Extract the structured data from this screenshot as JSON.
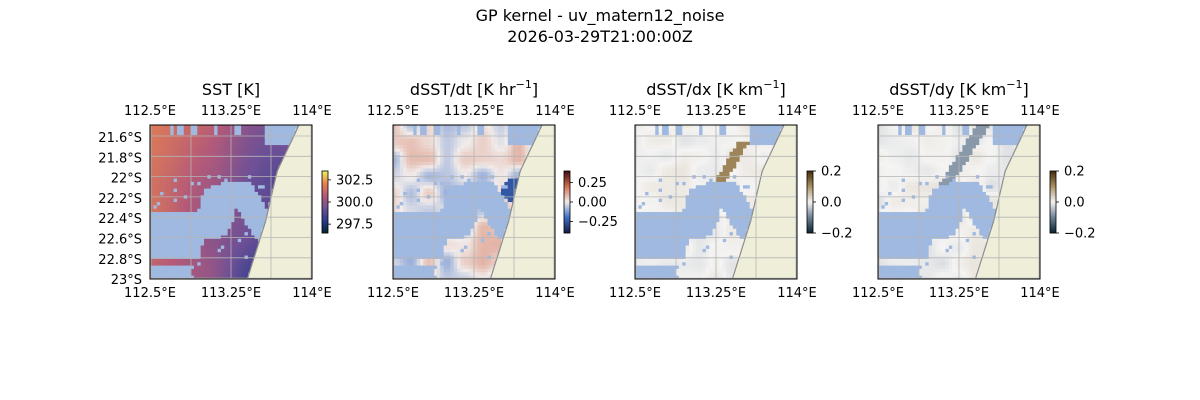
{
  "figure": {
    "title_line1": "GP kernel - uv_matern12_noise",
    "title_line2": "2026-03-29T21:00:00Z"
  },
  "colors": {
    "ocean_mask": "#a0b9e0",
    "land": "#efefd9",
    "coast": "#8c8c8c",
    "grid": "#b4b4b4"
  },
  "chart_data": [
    {
      "type": "heatmap",
      "title": "SST [K]",
      "colormap": "thermal",
      "x_ticks": [
        "112.5°E",
        "113.25°E",
        "114°E"
      ],
      "y_ticks": [
        "21.6°S",
        "21.8°S",
        "22°S",
        "22.2°S",
        "22.4°S",
        "22.6°S",
        "22.8°S",
        "23°S"
      ],
      "colorbar_ticks": [
        "302.5",
        "300.0",
        "297.5"
      ],
      "colorbar_range": [
        296.5,
        303.5
      ]
    },
    {
      "type": "heatmap",
      "title_main": "dSST/dt [K hr",
      "title_sup": "−1",
      "title_end": "]",
      "colormap": "balance",
      "x_ticks": [
        "112.5°E",
        "113.25°E",
        "114°E"
      ],
      "colorbar_ticks": [
        "0.25",
        "0.00",
        "−0.25"
      ],
      "colorbar_range": [
        -0.4,
        0.4
      ]
    },
    {
      "type": "heatmap",
      "title_main": "dSST/dx [K km",
      "title_sup": "−1",
      "title_end": "]",
      "colormap": "diff",
      "x_ticks": [
        "112.5°E",
        "113.25°E",
        "114°E"
      ],
      "colorbar_ticks": [
        "0.2",
        "0.0",
        "−0.2"
      ],
      "colorbar_range": [
        -0.2,
        0.2
      ]
    },
    {
      "type": "heatmap",
      "title_main": "dSST/dy [K km",
      "title_sup": "−1",
      "title_end": "]",
      "colormap": "diff",
      "x_ticks": [
        "112.5°E",
        "113.25°E",
        "114°E"
      ],
      "colorbar_ticks": [
        "0.2",
        "0.0",
        "−0.2"
      ],
      "colorbar_range": [
        -0.2,
        0.2
      ]
    }
  ]
}
